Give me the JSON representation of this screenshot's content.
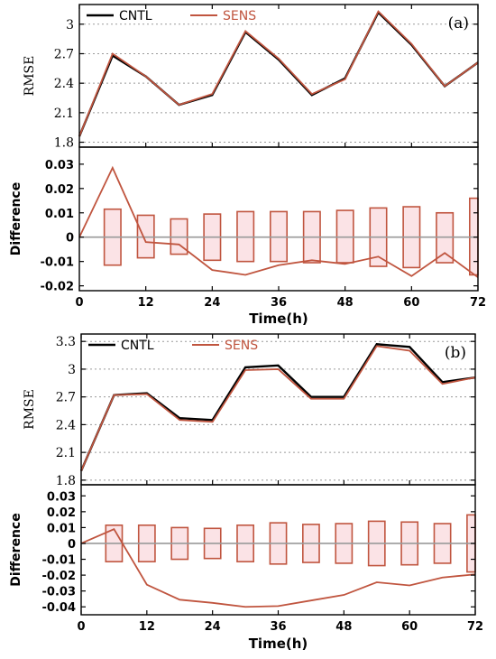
{
  "colors": {
    "cntl": "#000000",
    "sens": "#c0553f",
    "box_stroke": "#c0553f",
    "box_fill": "#fbe3e6",
    "zero_line": "#999999",
    "grid": "#9a9a9a"
  },
  "chart_data": [
    {
      "type": "line",
      "panel_label": "(a)",
      "legend": [
        "CNTL",
        "SENS"
      ],
      "legend_position": "top-left",
      "x": [
        0,
        6,
        12,
        18,
        24,
        30,
        36,
        42,
        48,
        54,
        60,
        66,
        72
      ],
      "xticks": [
        0,
        12,
        24,
        36,
        48,
        60,
        72
      ],
      "xlim": [
        0,
        72
      ],
      "xlabel": "Time(h)",
      "top": {
        "ylabel": "RMSE",
        "ylim": [
          1.75,
          3.2
        ],
        "yticks": [
          1.8,
          2.1,
          2.4,
          2.7,
          3
        ],
        "grid": "horizontal dotted",
        "series": [
          {
            "name": "CNTL",
            "values": [
              1.86,
              2.68,
              2.47,
              2.18,
              2.28,
              2.92,
              2.64,
              2.28,
              2.45,
              3.12,
              2.79,
              2.37,
              2.61
            ]
          },
          {
            "name": "SENS",
            "values": [
              1.86,
              2.7,
              2.47,
              2.18,
              2.29,
              2.93,
              2.65,
              2.29,
              2.44,
              3.13,
              2.8,
              2.37,
              2.61
            ]
          }
        ]
      },
      "bottom": {
        "ylabel": "Difference",
        "ylim": [
          -0.022,
          0.037
        ],
        "yticks": [
          -0.02,
          -0.01,
          0,
          0.01,
          0.02,
          0.03
        ],
        "ytick_labels": [
          "-0.02",
          "-0.01",
          "0",
          "0.01",
          "0.02",
          "0.03"
        ],
        "difference": [
          0,
          0.0285,
          -0.002,
          -0.003,
          -0.0135,
          -0.0155,
          -0.0115,
          -0.0095,
          -0.011,
          -0.008,
          -0.016,
          -0.0065,
          -0.0165
        ],
        "boxes": [
          {
            "x": 6,
            "low": -0.0115,
            "high": 0.0115
          },
          {
            "x": 12,
            "low": -0.0085,
            "high": 0.009
          },
          {
            "x": 18,
            "low": -0.007,
            "high": 0.0075
          },
          {
            "x": 24,
            "low": -0.0095,
            "high": 0.0095
          },
          {
            "x": 30,
            "low": -0.01,
            "high": 0.0105
          },
          {
            "x": 36,
            "low": -0.01,
            "high": 0.0105
          },
          {
            "x": 42,
            "low": -0.0105,
            "high": 0.0105
          },
          {
            "x": 48,
            "low": -0.0105,
            "high": 0.011
          },
          {
            "x": 54,
            "low": -0.012,
            "high": 0.012
          },
          {
            "x": 60,
            "low": -0.0125,
            "high": 0.0125
          },
          {
            "x": 66,
            "low": -0.0105,
            "high": 0.01
          },
          {
            "x": 72,
            "low": -0.0155,
            "high": 0.016
          }
        ]
      }
    },
    {
      "type": "line",
      "panel_label": "(b)",
      "legend": [
        "CNTL",
        "SENS"
      ],
      "legend_position": "top-left",
      "x": [
        0,
        6,
        12,
        18,
        24,
        30,
        36,
        42,
        48,
        54,
        60,
        66,
        72
      ],
      "xticks": [
        0,
        12,
        24,
        36,
        48,
        60,
        72
      ],
      "xlim": [
        0,
        72
      ],
      "xlabel": "Time(h)",
      "top": {
        "ylabel": "RMSE",
        "ylim": [
          1.75,
          3.38
        ],
        "yticks": [
          1.8,
          2.1,
          2.4,
          2.7,
          3,
          3.3
        ],
        "grid": "horizontal dotted",
        "series": [
          {
            "name": "CNTL",
            "values": [
              1.9,
              2.72,
              2.74,
              2.47,
              2.45,
              3.02,
              3.04,
              2.7,
              2.7,
              3.27,
              3.24,
              2.86,
              2.91
            ]
          },
          {
            "name": "SENS",
            "values": [
              1.9,
              2.72,
              2.73,
              2.45,
              2.43,
              2.99,
              3.0,
              2.68,
              2.68,
              3.25,
              3.2,
              2.84,
              2.91
            ]
          }
        ]
      },
      "bottom": {
        "ylabel": "Difference",
        "ylim": [
          -0.045,
          0.037
        ],
        "yticks": [
          -0.04,
          -0.03,
          -0.02,
          -0.01,
          0,
          0.01,
          0.02,
          0.03
        ],
        "ytick_labels": [
          "-0.04",
          "-0.03",
          "-0.02",
          "-0.01",
          "0",
          "0.01",
          "0.02",
          "0.03"
        ],
        "difference": [
          0,
          0.009,
          -0.026,
          -0.0355,
          -0.0375,
          -0.04,
          -0.0395,
          -0.036,
          -0.0325,
          -0.0245,
          -0.0265,
          -0.0215,
          -0.0195
        ],
        "boxes": [
          {
            "x": 6,
            "low": -0.0115,
            "high": 0.0115
          },
          {
            "x": 12,
            "low": -0.0115,
            "high": 0.0115
          },
          {
            "x": 18,
            "low": -0.01,
            "high": 0.01
          },
          {
            "x": 24,
            "low": -0.0095,
            "high": 0.0095
          },
          {
            "x": 30,
            "low": -0.0115,
            "high": 0.0115
          },
          {
            "x": 36,
            "low": -0.013,
            "high": 0.013
          },
          {
            "x": 42,
            "low": -0.012,
            "high": 0.012
          },
          {
            "x": 48,
            "low": -0.0125,
            "high": 0.0125
          },
          {
            "x": 54,
            "low": -0.014,
            "high": 0.014
          },
          {
            "x": 60,
            "low": -0.0135,
            "high": 0.0135
          },
          {
            "x": 66,
            "low": -0.0125,
            "high": 0.0125
          },
          {
            "x": 72,
            "low": -0.018,
            "high": 0.018
          }
        ]
      }
    }
  ]
}
